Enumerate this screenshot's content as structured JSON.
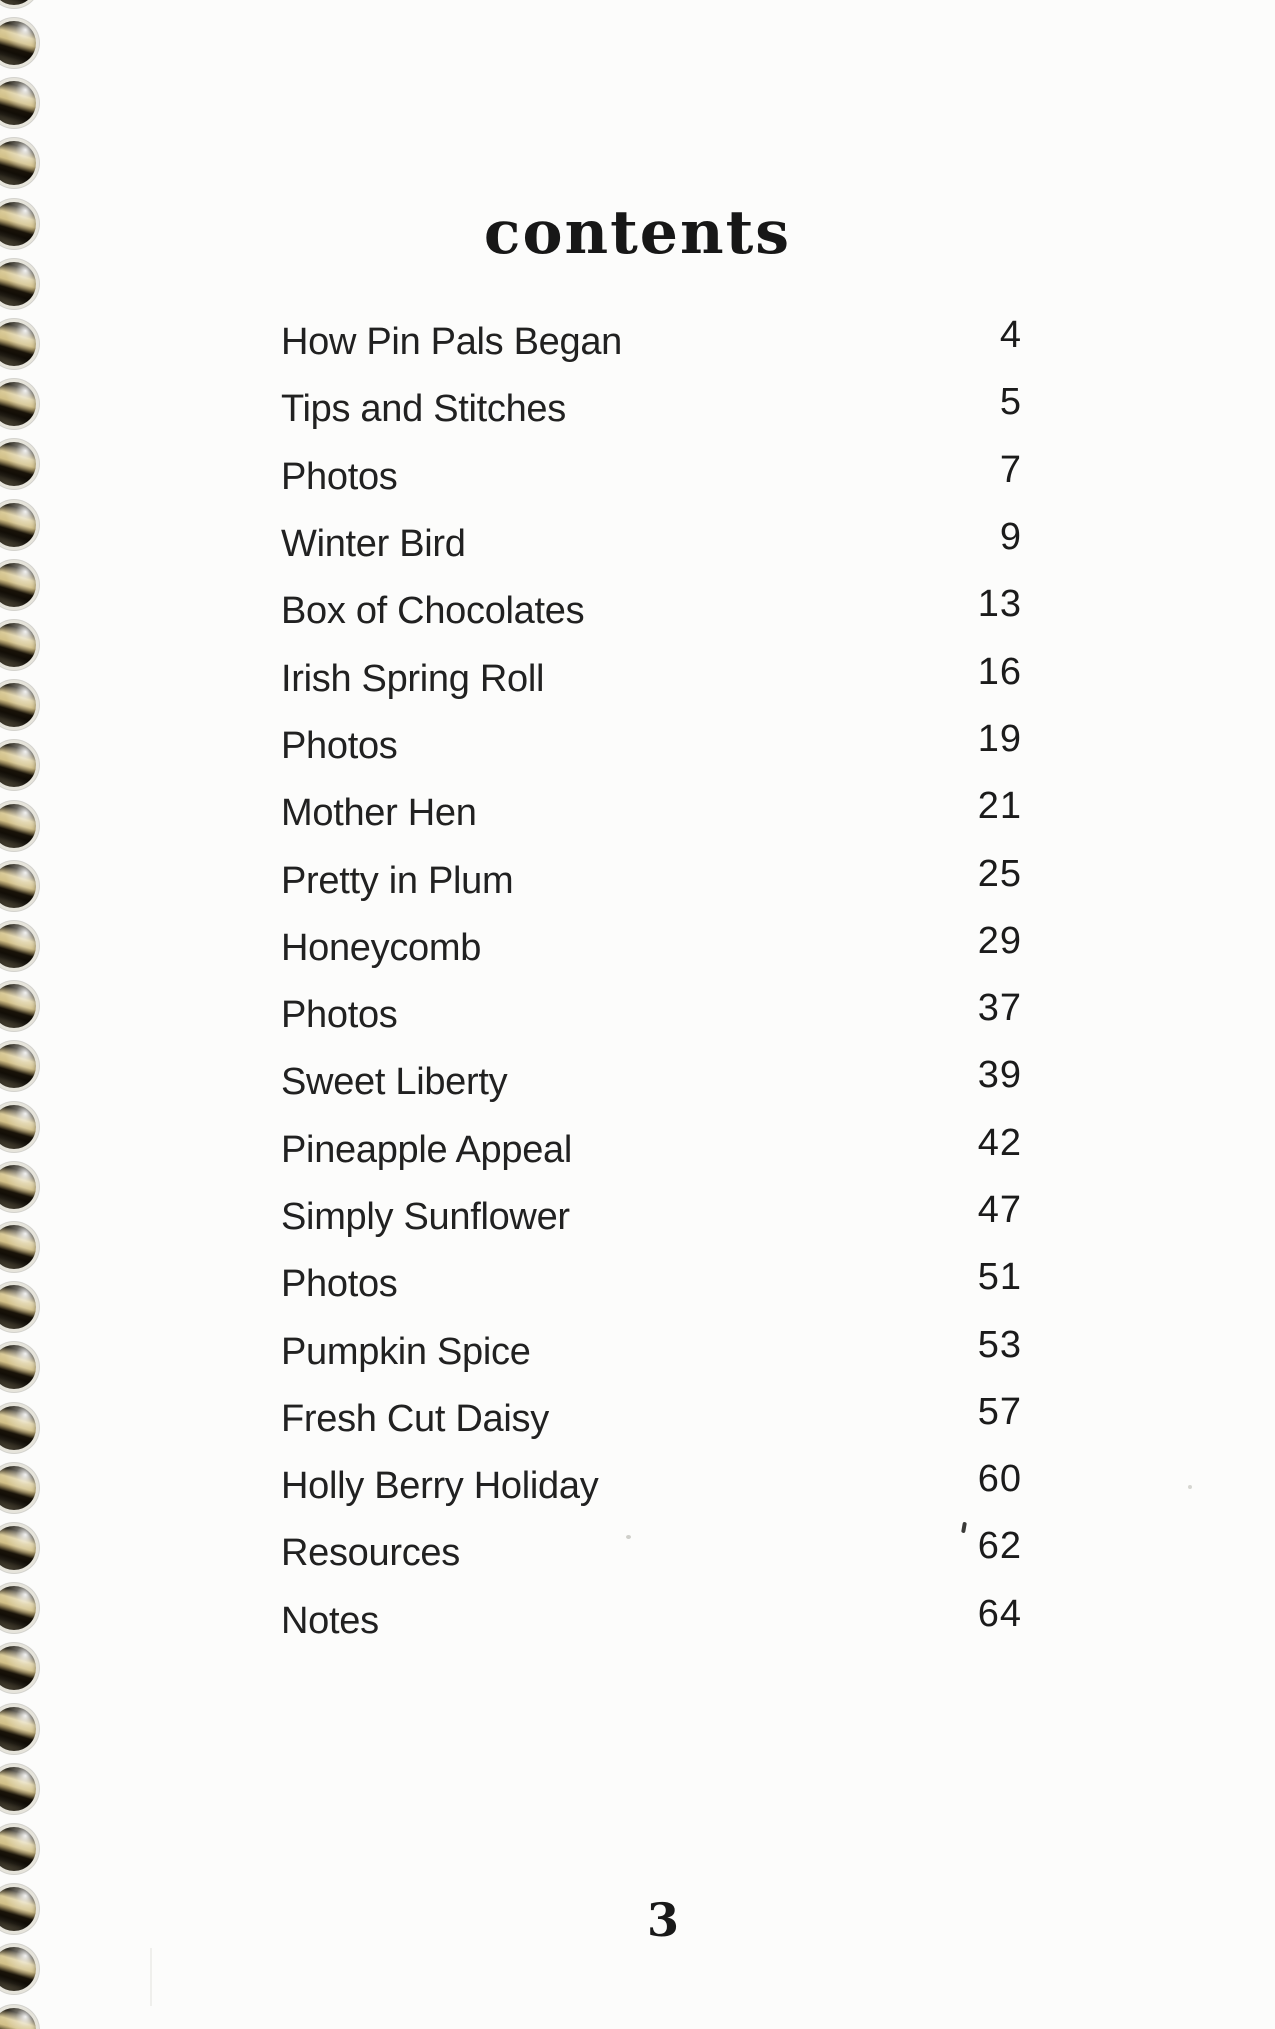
{
  "page": {
    "title": "contents",
    "page_number": "3",
    "toc": [
      {
        "label": "How Pin Pals Began",
        "page": "4"
      },
      {
        "label": "Tips and Stitches",
        "page": "5"
      },
      {
        "label": "Photos",
        "page": "7"
      },
      {
        "label": "Winter Bird",
        "page": "9"
      },
      {
        "label": "Box of Chocolates",
        "page": "13"
      },
      {
        "label": "Irish Spring Roll",
        "page": "16"
      },
      {
        "label": "Photos",
        "page": "19"
      },
      {
        "label": "Mother Hen",
        "page": "21"
      },
      {
        "label": "Pretty in Plum",
        "page": "25"
      },
      {
        "label": "Honeycomb",
        "page": "29"
      },
      {
        "label": "Photos",
        "page": "37"
      },
      {
        "label": "Sweet Liberty",
        "page": "39"
      },
      {
        "label": "Pineapple Appeal",
        "page": "42"
      },
      {
        "label": "Simply Sunflower",
        "page": "47"
      },
      {
        "label": "Photos",
        "page": "51"
      },
      {
        "label": "Pumpkin Spice",
        "page": "53"
      },
      {
        "label": "Fresh Cut Daisy",
        "page": "57"
      },
      {
        "label": "Holly Berry Holiday",
        "page": "60"
      },
      {
        "label": "Resources",
        "page": "62"
      },
      {
        "label": "Notes",
        "page": "64"
      }
    ],
    "colors": {
      "ink": "#1f1f1f",
      "paper": "#fcfcfb",
      "coil": "#d5c48c",
      "hole_shadow": "#0b0804"
    }
  }
}
